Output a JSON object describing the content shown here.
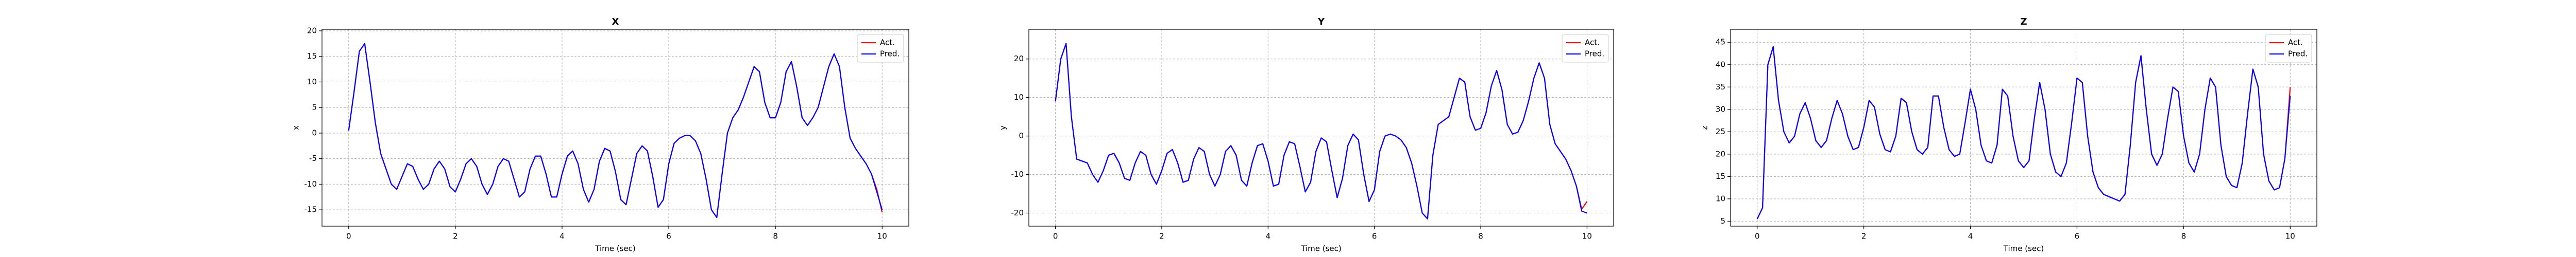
{
  "chart_data": [
    {
      "type": "line",
      "title": "X",
      "xlabel": "Time (sec)",
      "ylabel": "x",
      "x": [
        0,
        0.1,
        0.2,
        0.3,
        0.4,
        0.5,
        0.6,
        0.7,
        0.8,
        0.9,
        1,
        1.1,
        1.2,
        1.3,
        1.4,
        1.5,
        1.6,
        1.7,
        1.8,
        1.9,
        2,
        2.1,
        2.2,
        2.3,
        2.4,
        2.5,
        2.6,
        2.7,
        2.8,
        2.9,
        3,
        3.1,
        3.2,
        3.3,
        3.4,
        3.5,
        3.6,
        3.7,
        3.8,
        3.9,
        4,
        4.1,
        4.2,
        4.3,
        4.4,
        4.5,
        4.6,
        4.7,
        4.8,
        4.9,
        5,
        5.1,
        5.2,
        5.3,
        5.4,
        5.5,
        5.6,
        5.7,
        5.8,
        5.9,
        6,
        6.1,
        6.2,
        6.3,
        6.4,
        6.5,
        6.6,
        6.7,
        6.8,
        6.9,
        7,
        7.1,
        7.2,
        7.3,
        7.4,
        7.5,
        7.6,
        7.7,
        7.8,
        7.9,
        8,
        8.1,
        8.2,
        8.3,
        8.4,
        8.5,
        8.6,
        8.7,
        8.8,
        8.9,
        9,
        9.1,
        9.2,
        9.3,
        9.4,
        9.5,
        9.6,
        9.7,
        9.8,
        9.9,
        10
      ],
      "xlim": [
        -0.5,
        10.5
      ],
      "xticks": [
        0,
        2,
        4,
        6,
        8,
        10
      ],
      "ylim": [
        -18.2,
        20.3
      ],
      "yticks": [
        -15,
        -10,
        -5,
        0,
        5,
        10,
        15,
        20
      ],
      "grid": true,
      "legend": "upper right",
      "series": [
        {
          "name": "Act.",
          "color": "red",
          "values": [
            0.5,
            8,
            16,
            17.5,
            10,
            2,
            -4,
            -7,
            -10,
            -11,
            -8.5,
            -6,
            -6.5,
            -9,
            -11,
            -10,
            -7,
            -5.5,
            -7,
            -10.5,
            -11.5,
            -9,
            -6,
            -5,
            -6.5,
            -10,
            -12,
            -10,
            -6.5,
            -5,
            -5.5,
            -9,
            -12.5,
            -11.5,
            -7,
            -4.5,
            -4.5,
            -8,
            -12.5,
            -12.5,
            -8,
            -4.5,
            -3.5,
            -6,
            -11,
            -13.5,
            -11,
            -5.5,
            -3,
            -3.5,
            -7.5,
            -13,
            -14,
            -9,
            -4,
            -2.5,
            -3.5,
            -8.5,
            -14.5,
            -13,
            -6,
            -2,
            -1,
            -0.5,
            -0.5,
            -1.5,
            -4,
            -9,
            -15,
            -16.5,
            -8,
            0,
            3,
            4.5,
            7,
            10,
            13,
            12,
            6,
            3,
            3,
            6,
            12,
            14,
            9,
            3,
            1.5,
            3,
            5,
            9,
            13,
            15.5,
            13,
            5,
            -1,
            -3,
            -4.5,
            -6,
            -8,
            -11,
            -15.5
          ]
        },
        {
          "name": "Pred.",
          "color": "blue",
          "values": [
            0.5,
            8,
            16,
            17.5,
            10,
            2,
            -4,
            -7,
            -10,
            -11,
            -8.5,
            -6,
            -6.5,
            -9,
            -11,
            -10,
            -7,
            -5.5,
            -7,
            -10.5,
            -11.5,
            -9,
            -6,
            -5,
            -6.5,
            -10,
            -12,
            -10,
            -6.5,
            -5,
            -5.5,
            -9,
            -12.5,
            -11.5,
            -7,
            -4.5,
            -4.5,
            -8,
            -12.5,
            -12.5,
            -8,
            -4.5,
            -3.5,
            -6,
            -11,
            -13.5,
            -11,
            -5.5,
            -3,
            -3.5,
            -7.5,
            -13,
            -14,
            -9,
            -4,
            -2.5,
            -3.5,
            -8.5,
            -14.5,
            -13,
            -6,
            -2,
            -1,
            -0.5,
            -0.5,
            -1.5,
            -4,
            -9,
            -15,
            -16.5,
            -8,
            0,
            3,
            4.5,
            7,
            10,
            13,
            12,
            6,
            3,
            3,
            6,
            12,
            14,
            9,
            3,
            1.5,
            3,
            5,
            9,
            13,
            15.5,
            13,
            5,
            -1,
            -3,
            -4.5,
            -6,
            -8,
            -11.5,
            -15
          ]
        }
      ]
    },
    {
      "type": "line",
      "title": "Y",
      "xlabel": "Time (sec)",
      "ylabel": "y",
      "x": [
        0,
        0.1,
        0.2,
        0.3,
        0.4,
        0.5,
        0.6,
        0.7,
        0.8,
        0.9,
        1,
        1.1,
        1.2,
        1.3,
        1.4,
        1.5,
        1.6,
        1.7,
        1.8,
        1.9,
        2,
        2.1,
        2.2,
        2.3,
        2.4,
        2.5,
        2.6,
        2.7,
        2.8,
        2.9,
        3,
        3.1,
        3.2,
        3.3,
        3.4,
        3.5,
        3.6,
        3.7,
        3.8,
        3.9,
        4,
        4.1,
        4.2,
        4.3,
        4.4,
        4.5,
        4.6,
        4.7,
        4.8,
        4.9,
        5,
        5.1,
        5.2,
        5.3,
        5.4,
        5.5,
        5.6,
        5.7,
        5.8,
        5.9,
        6,
        6.1,
        6.2,
        6.3,
        6.4,
        6.5,
        6.6,
        6.7,
        6.8,
        6.9,
        7,
        7.1,
        7.2,
        7.3,
        7.4,
        7.5,
        7.6,
        7.7,
        7.8,
        7.9,
        8,
        8.1,
        8.2,
        8.3,
        8.4,
        8.5,
        8.6,
        8.7,
        8.8,
        8.9,
        9,
        9.1,
        9.2,
        9.3,
        9.4,
        9.5,
        9.6,
        9.7,
        9.8,
        9.9,
        10
      ],
      "xlim": [
        -0.5,
        10.5
      ],
      "xticks": [
        0,
        2,
        4,
        6,
        8,
        10
      ],
      "ylim": [
        -23.4,
        27.7
      ],
      "yticks": [
        -20,
        -10,
        0,
        10,
        20
      ],
      "grid": true,
      "legend": "upper right",
      "series": [
        {
          "name": "Act.",
          "color": "red",
          "values": [
            9,
            20,
            24,
            5,
            -6,
            -6.5,
            -7,
            -10,
            -12,
            -9,
            -5,
            -4.5,
            -7,
            -11,
            -11.5,
            -7,
            -4,
            -5,
            -10,
            -12.5,
            -9,
            -4.5,
            -3.5,
            -7,
            -12,
            -11.5,
            -6,
            -3,
            -4,
            -10,
            -13,
            -10,
            -4,
            -2.5,
            -5,
            -11.5,
            -13,
            -7,
            -2.5,
            -2,
            -6.5,
            -13,
            -12.5,
            -5,
            -1.5,
            -2,
            -8,
            -14.5,
            -12,
            -4,
            -0.5,
            -1.5,
            -9,
            -16,
            -11,
            -2.5,
            0.5,
            -1,
            -10,
            -17,
            -14,
            -4,
            0,
            0.5,
            0,
            -1,
            -3,
            -7,
            -13,
            -20,
            -21.5,
            -5,
            3,
            4,
            5,
            10,
            15,
            14,
            5,
            1.5,
            2,
            6,
            13,
            17,
            12,
            3,
            0.5,
            1,
            4,
            9,
            15,
            19,
            15,
            3,
            -2,
            -4,
            -6,
            -9,
            -13,
            -19,
            -17
          ]
        },
        {
          "name": "Pred.",
          "color": "blue",
          "values": [
            9,
            20,
            24,
            5,
            -6,
            -6.5,
            -7,
            -10,
            -12,
            -9,
            -5,
            -4.5,
            -7,
            -11,
            -11.5,
            -7,
            -4,
            -5,
            -10,
            -12.5,
            -9,
            -4.5,
            -3.5,
            -7,
            -12,
            -11.5,
            -6,
            -3,
            -4,
            -10,
            -13,
            -10,
            -4,
            -2.5,
            -5,
            -11.5,
            -13,
            -7,
            -2.5,
            -2,
            -6.5,
            -13,
            -12.5,
            -5,
            -1.5,
            -2,
            -8,
            -14.5,
            -12,
            -4,
            -0.5,
            -1.5,
            -9,
            -16,
            -11,
            -2.5,
            0.5,
            -1,
            -10,
            -17,
            -14,
            -4,
            0,
            0.5,
            0,
            -1,
            -3,
            -7,
            -13,
            -20,
            -21.5,
            -5,
            3,
            4,
            5,
            10,
            15,
            14,
            5,
            1.5,
            2,
            6,
            13,
            17,
            12,
            3,
            0.5,
            1,
            4,
            9,
            15,
            19,
            15,
            3,
            -2,
            -4,
            -6,
            -9,
            -13,
            -19.5,
            -20
          ]
        }
      ]
    },
    {
      "type": "line",
      "title": "Z",
      "xlabel": "Time (sec)",
      "ylabel": "z",
      "x": [
        0,
        0.1,
        0.2,
        0.3,
        0.4,
        0.5,
        0.6,
        0.7,
        0.8,
        0.9,
        1,
        1.1,
        1.2,
        1.3,
        1.4,
        1.5,
        1.6,
        1.7,
        1.8,
        1.9,
        2,
        2.1,
        2.2,
        2.3,
        2.4,
        2.5,
        2.6,
        2.7,
        2.8,
        2.9,
        3,
        3.1,
        3.2,
        3.3,
        3.4,
        3.5,
        3.6,
        3.7,
        3.8,
        3.9,
        4,
        4.1,
        4.2,
        4.3,
        4.4,
        4.5,
        4.6,
        4.7,
        4.8,
        4.9,
        5,
        5.1,
        5.2,
        5.3,
        5.4,
        5.5,
        5.6,
        5.7,
        5.8,
        5.9,
        6,
        6.1,
        6.2,
        6.3,
        6.4,
        6.5,
        6.6,
        6.7,
        6.8,
        6.9,
        7,
        7.1,
        7.2,
        7.3,
        7.4,
        7.5,
        7.6,
        7.7,
        7.8,
        7.9,
        8,
        8.1,
        8.2,
        8.3,
        8.4,
        8.5,
        8.6,
        8.7,
        8.8,
        8.9,
        9,
        9.1,
        9.2,
        9.3,
        9.4,
        9.5,
        9.6,
        9.7,
        9.8,
        9.9,
        10
      ],
      "xlim": [
        -0.5,
        10.5
      ],
      "xticks": [
        0,
        2,
        4,
        6,
        8,
        10
      ],
      "ylim": [
        3.9,
        47.9
      ],
      "yticks": [
        5,
        10,
        15,
        20,
        25,
        30,
        35,
        40,
        45
      ],
      "grid": true,
      "legend": "upper right",
      "series": [
        {
          "name": "Act.",
          "color": "red",
          "values": [
            5.5,
            8,
            40,
            44,
            32,
            25,
            22.5,
            24,
            29,
            31.5,
            28,
            23,
            21.5,
            23,
            28,
            32,
            29,
            24,
            21,
            21.5,
            26,
            32,
            30.5,
            24.5,
            21,
            20.5,
            24,
            32.5,
            31.5,
            25,
            21,
            20,
            21.5,
            33,
            33,
            26,
            21,
            19.5,
            20,
            27,
            34.5,
            30,
            22,
            18.5,
            18,
            22,
            34.5,
            33,
            24,
            18.5,
            17,
            18.5,
            28,
            36,
            30,
            20,
            16,
            15,
            18,
            27,
            37,
            36,
            24,
            16,
            12.5,
            11,
            10.5,
            10,
            9.5,
            11,
            22,
            36,
            42,
            30,
            20,
            17.5,
            20,
            28,
            35,
            34,
            24,
            18,
            16,
            20,
            30,
            37,
            35,
            22,
            15,
            13,
            12.5,
            18,
            29,
            39,
            35,
            20,
            14,
            12,
            12.5,
            19,
            35
          ]
        },
        {
          "name": "Pred.",
          "color": "blue",
          "values": [
            5.5,
            8,
            40,
            44,
            32,
            25,
            22.5,
            24,
            29,
            31.5,
            28,
            23,
            21.5,
            23,
            28,
            32,
            29,
            24,
            21,
            21.5,
            26,
            32,
            30.5,
            24.5,
            21,
            20.5,
            24,
            32.5,
            31.5,
            25,
            21,
            20,
            21.5,
            33,
            33,
            26,
            21,
            19.5,
            20,
            27,
            34.5,
            30,
            22,
            18.5,
            18,
            22,
            34.5,
            33,
            24,
            18.5,
            17,
            18.5,
            28,
            36,
            30,
            20,
            16,
            15,
            18,
            27,
            37,
            36,
            24,
            16,
            12.5,
            11,
            10.5,
            10,
            9.5,
            11,
            22,
            36,
            42,
            30,
            20,
            17.5,
            20,
            28,
            35,
            34,
            24,
            18,
            16,
            20,
            30,
            37,
            35,
            22,
            15,
            13,
            12.5,
            18,
            29,
            39,
            35,
            20,
            14,
            12,
            12.5,
            19,
            33
          ]
        }
      ]
    }
  ]
}
